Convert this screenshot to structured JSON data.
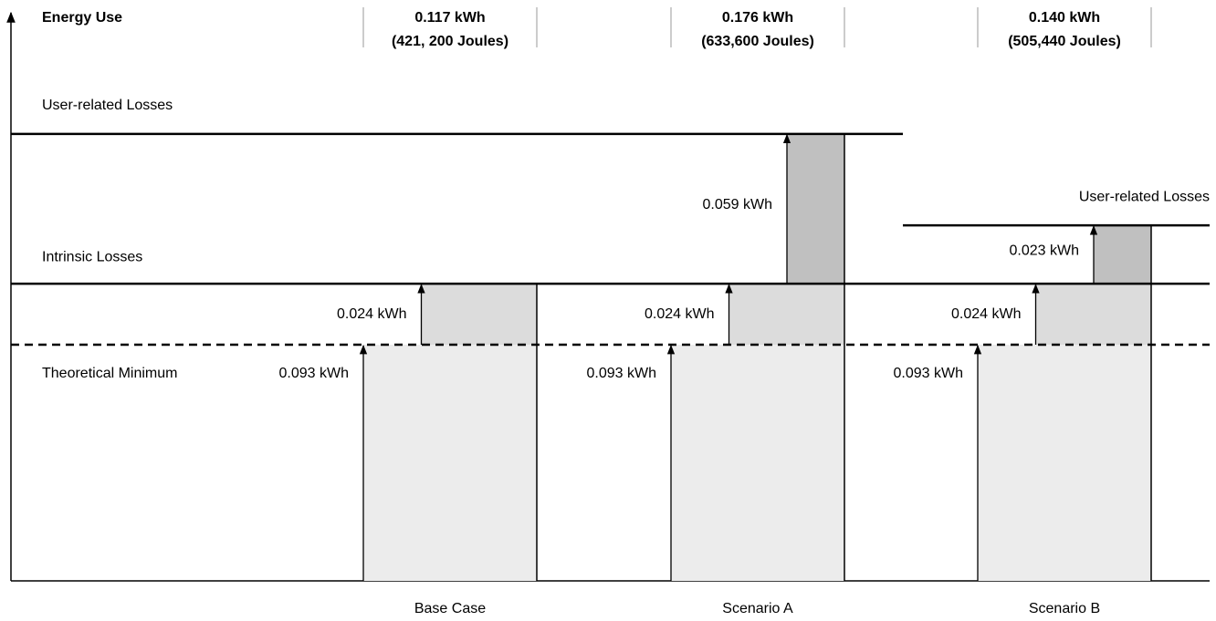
{
  "chart_data": {
    "type": "stacked-bar",
    "title": "Energy Use",
    "categories": [
      "Base Case",
      "Scenario A",
      "Scenario B"
    ],
    "totals": [
      "0.117 kWh",
      "0.176 kWh",
      "0.140 kWh"
    ],
    "joules": [
      "(421, 200 Joules)",
      "(633,600 Joules)",
      "(505,440 Joules)"
    ],
    "series": [
      {
        "name": "Theoretical Minimum",
        "color": "#ececec",
        "values": [
          0.093,
          0.093,
          0.093
        ],
        "value_labels": [
          "0.093 kWh",
          "0.093 kWh",
          "0.093 kWh"
        ]
      },
      {
        "name": "Intrinsic Losses",
        "color": "#dcdcdc",
        "values": [
          0.024,
          0.024,
          0.024
        ],
        "value_labels": [
          "0.024 kWh",
          "0.024 kWh",
          "0.024 kWh"
        ]
      },
      {
        "name": "User-related Losses",
        "color": "#c0c0c0",
        "values": [
          null,
          0.059,
          0.023
        ],
        "value_labels": [
          null,
          "0.059 kWh",
          "0.023 kWh"
        ]
      }
    ]
  }
}
